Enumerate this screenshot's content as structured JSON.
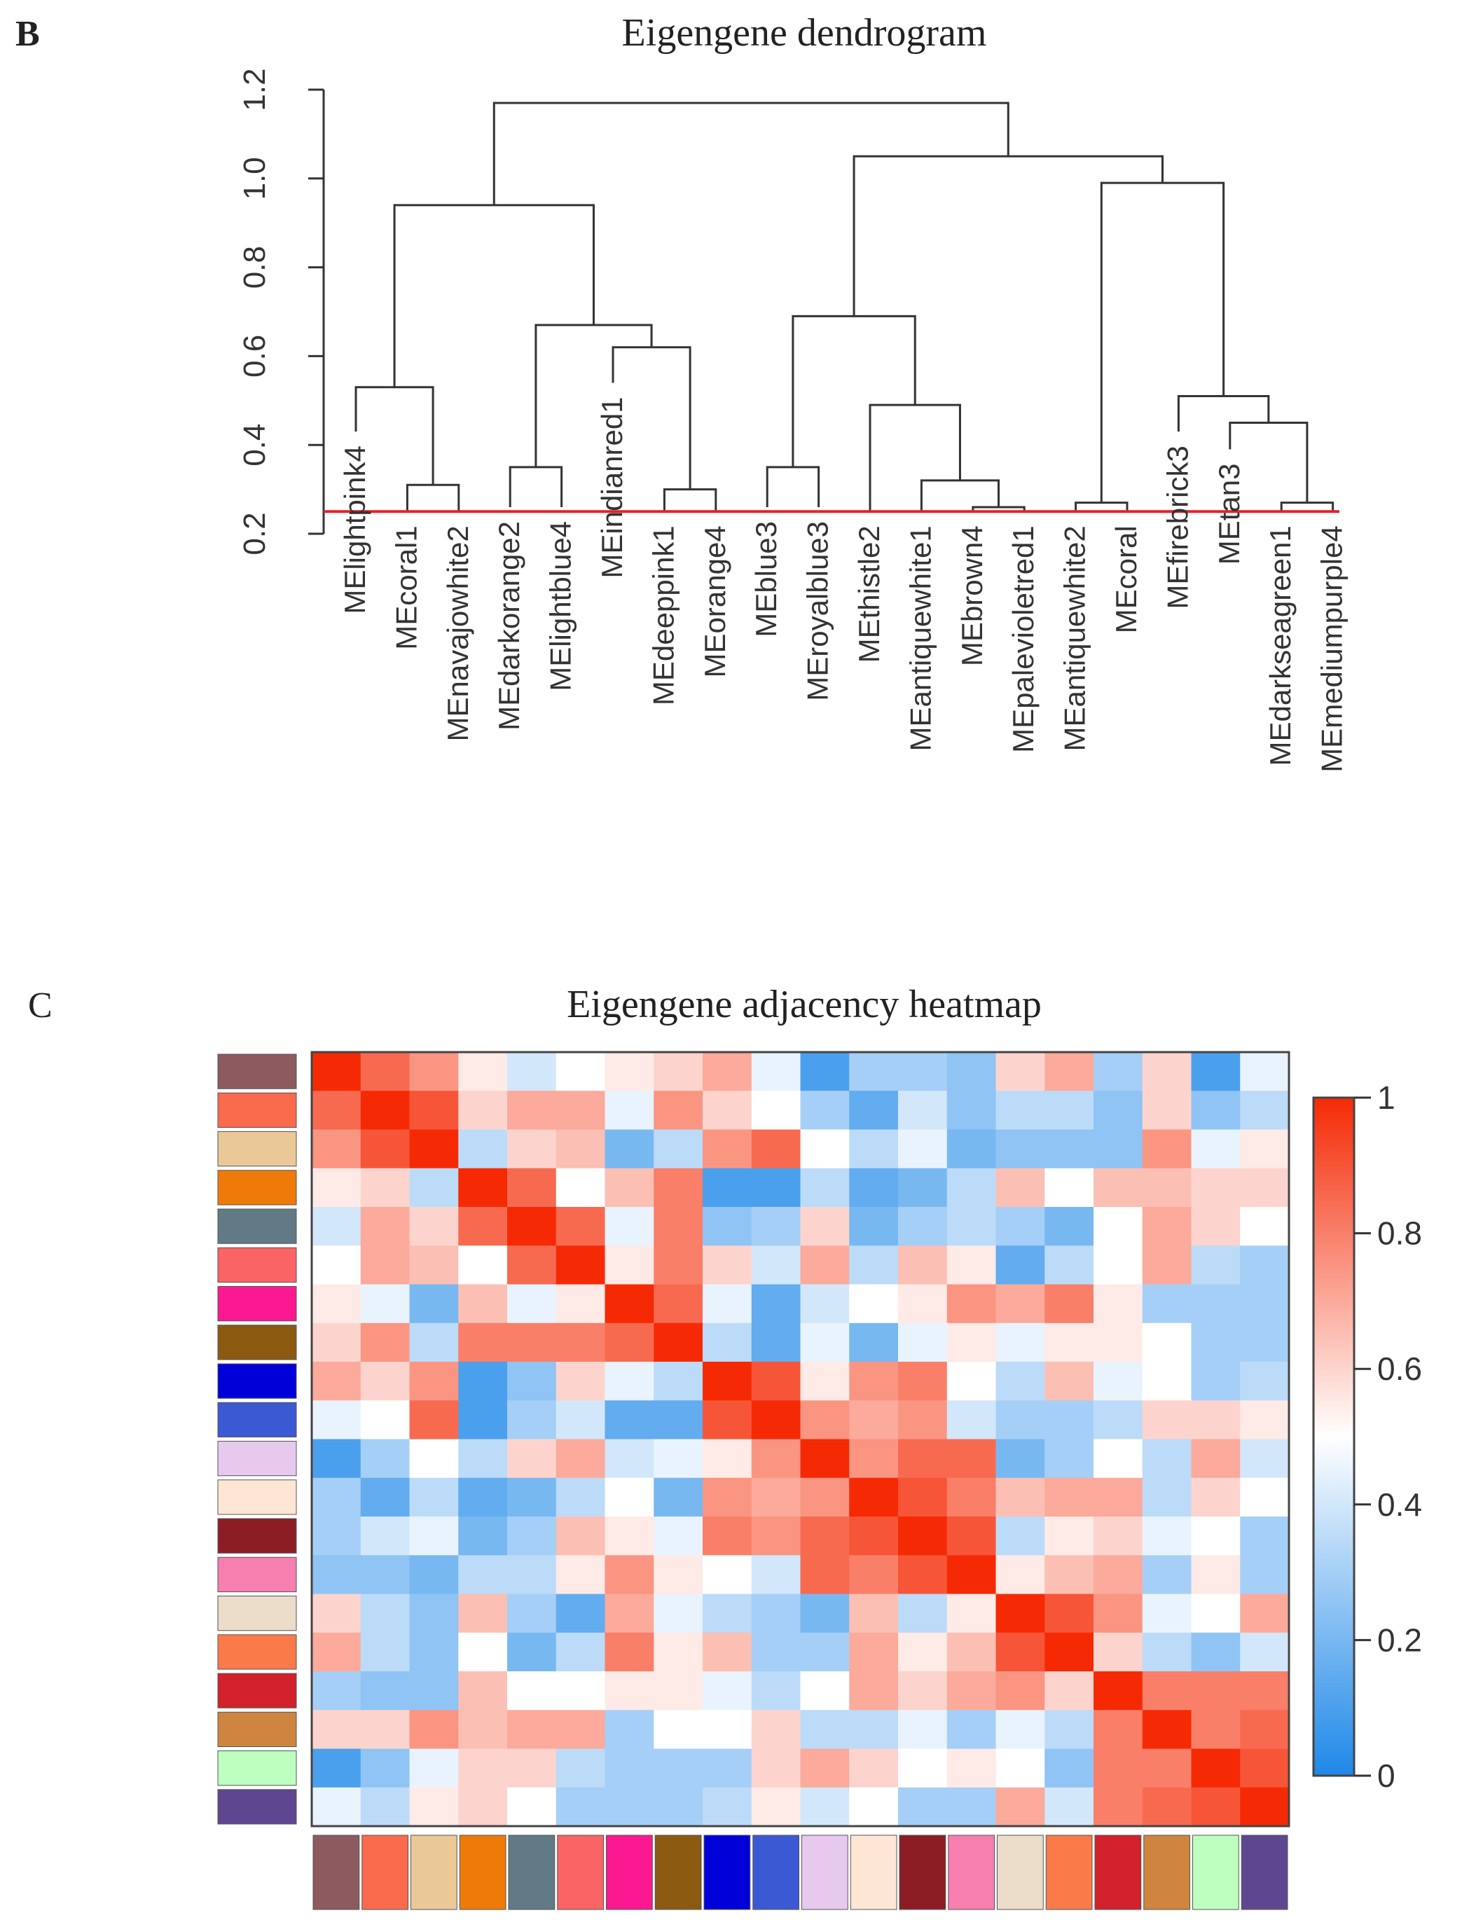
{
  "chart_data": [
    {
      "type": "dendrogram",
      "panel_label": "B",
      "title": "Eigengene dendrogram",
      "ylim": [
        0.2,
        1.2
      ],
      "yticks": [
        "0.2",
        "0.4",
        "0.6",
        "0.8",
        "1.0",
        "1.2"
      ],
      "cut_height": 0.25,
      "cut_line_color": "#e8212a",
      "leaves": [
        {
          "label": "MElightpink4",
          "h": 0.43
        },
        {
          "label": "MEcoral1",
          "h": 0.25
        },
        {
          "label": "MEnavajowhite2",
          "h": 0.25
        },
        {
          "label": "MEdarkorange2",
          "h": 0.26
        },
        {
          "label": "MElightblue4",
          "h": 0.26
        },
        {
          "label": "MEindianred1",
          "h": 0.54
        },
        {
          "label": "MEdeeppink1",
          "h": 0.25
        },
        {
          "label": "MEorange4",
          "h": 0.25
        },
        {
          "label": "MEblue3",
          "h": 0.26
        },
        {
          "label": "MEroyalblue3",
          "h": 0.26
        },
        {
          "label": "MEthistle2",
          "h": 0.25
        },
        {
          "label": "MEantiquewhite1",
          "h": 0.25
        },
        {
          "label": "MEbrown4",
          "h": 0.25
        },
        {
          "label": "MEpalevioletred1",
          "h": 0.25
        },
        {
          "label": "MEantiquewhite2",
          "h": 0.25
        },
        {
          "label": "MEcoral",
          "h": 0.25
        },
        {
          "label": "MEfirebrick3",
          "h": 0.43
        },
        {
          "label": "MEtan3",
          "h": 0.39
        },
        {
          "label": "MEdarkseagreen1",
          "h": 0.25
        },
        {
          "label": "MEmediumpurple4",
          "h": 0.25
        }
      ],
      "merges": [
        {
          "a": "L1",
          "b": "L2",
          "h": 0.31
        },
        {
          "a": "L0",
          "b": "M0",
          "h": 0.53
        },
        {
          "a": "L3",
          "b": "L4",
          "h": 0.35
        },
        {
          "a": "L6",
          "b": "L7",
          "h": 0.3
        },
        {
          "a": "L5",
          "b": "M3",
          "h": 0.62
        },
        {
          "a": "M2",
          "b": "M4",
          "h": 0.67
        },
        {
          "a": "M1",
          "b": "M5",
          "h": 0.94
        },
        {
          "a": "L8",
          "b": "L9",
          "h": 0.35
        },
        {
          "a": "L12",
          "b": "L13",
          "h": 0.26
        },
        {
          "a": "L11",
          "b": "M8",
          "h": 0.32
        },
        {
          "a": "L10",
          "b": "M9",
          "h": 0.49
        },
        {
          "a": "M7",
          "b": "M10",
          "h": 0.69
        },
        {
          "a": "L14",
          "b": "L15",
          "h": 0.27
        },
        {
          "a": "L18",
          "b": "L19",
          "h": 0.27
        },
        {
          "a": "L17",
          "b": "M13",
          "h": 0.45
        },
        {
          "a": "L16",
          "b": "M14",
          "h": 0.51
        },
        {
          "a": "M12",
          "b": "M15",
          "h": 0.99
        },
        {
          "a": "M11",
          "b": "M16",
          "h": 1.05
        },
        {
          "a": "M6",
          "b": "M17",
          "h": 1.17
        }
      ]
    },
    {
      "type": "heatmap",
      "panel_label": "C",
      "title": "Eigengene adjacency heatmap",
      "scale_range": [
        0,
        1
      ],
      "colorbar_ticks": [
        "0",
        "0.2",
        "0.4",
        "0.6",
        "0.8",
        "1"
      ],
      "colorscale": [
        "#1e88e8",
        "#ffffff",
        "#f52a05"
      ],
      "module_colors": [
        "#8c5a5f",
        "#fa6a4c",
        "#ebc897",
        "#ee7b09",
        "#617a86",
        "#fa6464",
        "#fb1891",
        "#8b5a10",
        "#0000d9",
        "#3c59d4",
        "#e8c9ee",
        "#fde6d4",
        "#8c1d24",
        "#f67fb0",
        "#ecdcca",
        "#fa7a49",
        "#d2212c",
        "#ce853f",
        "#bdffbf",
        "#5e4790"
      ],
      "matrix": [
        [
          1.0,
          0.85,
          0.75,
          0.55,
          0.4,
          0.5,
          0.55,
          0.6,
          0.7,
          0.45,
          0.1,
          0.3,
          0.3,
          0.25,
          0.6,
          0.7,
          0.3,
          0.6,
          0.1,
          0.45
        ],
        [
          0.85,
          1.0,
          0.9,
          0.6,
          0.7,
          0.7,
          0.45,
          0.75,
          0.6,
          0.5,
          0.3,
          0.15,
          0.4,
          0.25,
          0.35,
          0.35,
          0.25,
          0.6,
          0.25,
          0.35
        ],
        [
          0.75,
          0.9,
          1.0,
          0.35,
          0.6,
          0.65,
          0.2,
          0.35,
          0.75,
          0.85,
          0.5,
          0.35,
          0.45,
          0.2,
          0.25,
          0.25,
          0.25,
          0.75,
          0.45,
          0.55
        ],
        [
          0.55,
          0.6,
          0.35,
          1.0,
          0.85,
          0.5,
          0.65,
          0.8,
          0.1,
          0.1,
          0.35,
          0.15,
          0.2,
          0.35,
          0.65,
          0.5,
          0.65,
          0.65,
          0.6,
          0.6
        ],
        [
          0.4,
          0.7,
          0.6,
          0.85,
          1.0,
          0.85,
          0.45,
          0.8,
          0.25,
          0.3,
          0.6,
          0.2,
          0.3,
          0.35,
          0.3,
          0.2,
          0.5,
          0.7,
          0.6,
          0.5
        ],
        [
          0.5,
          0.7,
          0.65,
          0.5,
          0.85,
          1.0,
          0.55,
          0.8,
          0.6,
          0.4,
          0.7,
          0.35,
          0.65,
          0.55,
          0.15,
          0.35,
          0.5,
          0.7,
          0.35,
          0.3
        ],
        [
          0.55,
          0.45,
          0.2,
          0.65,
          0.45,
          0.55,
          1.0,
          0.85,
          0.45,
          0.15,
          0.4,
          0.5,
          0.55,
          0.75,
          0.7,
          0.8,
          0.55,
          0.3,
          0.3,
          0.3
        ],
        [
          0.6,
          0.75,
          0.35,
          0.8,
          0.8,
          0.8,
          0.85,
          1.0,
          0.35,
          0.15,
          0.45,
          0.2,
          0.45,
          0.55,
          0.45,
          0.55,
          0.55,
          0.5,
          0.3,
          0.3
        ],
        [
          0.7,
          0.6,
          0.75,
          0.1,
          0.25,
          0.6,
          0.45,
          0.35,
          1.0,
          0.9,
          0.55,
          0.75,
          0.8,
          0.5,
          0.35,
          0.65,
          0.45,
          0.5,
          0.3,
          0.35
        ],
        [
          0.45,
          0.5,
          0.85,
          0.1,
          0.3,
          0.4,
          0.15,
          0.15,
          0.9,
          1.0,
          0.75,
          0.7,
          0.75,
          0.4,
          0.3,
          0.3,
          0.35,
          0.6,
          0.6,
          0.55
        ],
        [
          0.1,
          0.3,
          0.5,
          0.35,
          0.6,
          0.7,
          0.4,
          0.45,
          0.55,
          0.75,
          1.0,
          0.75,
          0.85,
          0.85,
          0.2,
          0.3,
          0.5,
          0.35,
          0.7,
          0.4
        ],
        [
          0.3,
          0.15,
          0.35,
          0.15,
          0.2,
          0.35,
          0.5,
          0.2,
          0.75,
          0.7,
          0.75,
          1.0,
          0.9,
          0.8,
          0.65,
          0.7,
          0.7,
          0.35,
          0.6,
          0.5
        ],
        [
          0.3,
          0.4,
          0.45,
          0.2,
          0.3,
          0.65,
          0.55,
          0.45,
          0.8,
          0.75,
          0.85,
          0.9,
          1.0,
          0.9,
          0.35,
          0.55,
          0.6,
          0.45,
          0.5,
          0.3
        ],
        [
          0.25,
          0.25,
          0.2,
          0.35,
          0.35,
          0.55,
          0.75,
          0.55,
          0.5,
          0.4,
          0.85,
          0.8,
          0.9,
          1.0,
          0.55,
          0.65,
          0.7,
          0.3,
          0.55,
          0.3
        ],
        [
          0.6,
          0.35,
          0.25,
          0.65,
          0.3,
          0.15,
          0.7,
          0.45,
          0.35,
          0.3,
          0.2,
          0.65,
          0.35,
          0.55,
          1.0,
          0.9,
          0.75,
          0.45,
          0.5,
          0.7
        ],
        [
          0.7,
          0.35,
          0.25,
          0.5,
          0.2,
          0.35,
          0.8,
          0.55,
          0.65,
          0.3,
          0.3,
          0.7,
          0.55,
          0.65,
          0.9,
          1.0,
          0.6,
          0.35,
          0.25,
          0.4
        ],
        [
          0.3,
          0.25,
          0.25,
          0.65,
          0.5,
          0.5,
          0.55,
          0.55,
          0.45,
          0.35,
          0.5,
          0.7,
          0.6,
          0.7,
          0.75,
          0.6,
          1.0,
          0.8,
          0.8,
          0.8
        ],
        [
          0.6,
          0.6,
          0.75,
          0.65,
          0.7,
          0.7,
          0.3,
          0.5,
          0.5,
          0.6,
          0.35,
          0.35,
          0.45,
          0.3,
          0.45,
          0.35,
          0.8,
          1.0,
          0.8,
          0.85
        ],
        [
          0.1,
          0.25,
          0.45,
          0.6,
          0.6,
          0.35,
          0.3,
          0.3,
          0.3,
          0.6,
          0.7,
          0.6,
          0.5,
          0.55,
          0.5,
          0.25,
          0.8,
          0.8,
          1.0,
          0.9
        ],
        [
          0.45,
          0.35,
          0.55,
          0.6,
          0.5,
          0.3,
          0.3,
          0.3,
          0.35,
          0.55,
          0.4,
          0.5,
          0.3,
          0.3,
          0.7,
          0.4,
          0.8,
          0.85,
          0.9,
          1.0
        ]
      ]
    }
  ]
}
